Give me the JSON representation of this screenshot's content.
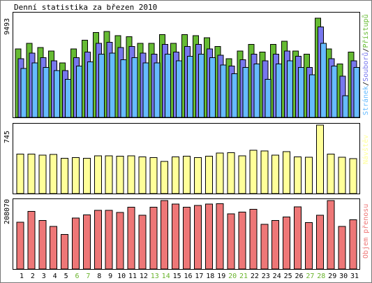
{
  "chart_data": {
    "type": "bar",
    "title": "Denní statistika za březen 2010",
    "categories": [
      "1",
      "2",
      "3",
      "4",
      "5",
      "6",
      "7",
      "8",
      "9",
      "10",
      "11",
      "12",
      "13",
      "14",
      "15",
      "16",
      "17",
      "18",
      "19",
      "20",
      "21",
      "22",
      "23",
      "24",
      "25",
      "26",
      "27",
      "28",
      "29",
      "30",
      "31"
    ],
    "weekend_days": [
      "6",
      "7",
      "13",
      "14",
      "20",
      "21",
      "27",
      "28"
    ],
    "colors": {
      "weekday_tick": "#000000",
      "weekend_tick": "#6ab42d"
    },
    "panels": [
      {
        "id": "traffic",
        "ymax_label": "9493",
        "ymax": 9493,
        "series": [
          {
            "name": "Přístupů",
            "color": "#66bb33",
            "values": [
              6300,
              6800,
              6400,
              6100,
              5000,
              6300,
              7100,
              7800,
              7900,
              7500,
              7400,
              6800,
              6800,
              7600,
              6800,
              7600,
              7500,
              7300,
              6500,
              5400,
              6100,
              6700,
              6000,
              6700,
              7000,
              6100,
              5800,
              9100,
              6300,
              4900,
              6000
            ]
          },
          {
            "name": "Souborů",
            "color": "#7777ee",
            "values": [
              5400,
              5900,
              5500,
              5200,
              4300,
              5500,
              6000,
              6800,
              6900,
              6400,
              6500,
              5900,
              5800,
              6700,
              6000,
              6500,
              6700,
              6300,
              5700,
              4700,
              5300,
              5800,
              5200,
              5800,
              6100,
              5600,
              4600,
              8300,
              5400,
              3800,
              5200
            ]
          },
          {
            "name": "Stránek",
            "color": "#66bbff",
            "values": [
              4500,
              5000,
              4600,
              4300,
              3500,
              4700,
              5100,
              5800,
              5900,
              5300,
              5500,
              5000,
              5000,
              5800,
              5200,
              5600,
              5800,
              5500,
              4800,
              4000,
              4600,
              4900,
              3500,
              4900,
              5200,
              4600,
              3900,
              6800,
              4700,
              2000,
              4600
            ]
          }
        ]
      },
      {
        "id": "visits",
        "ymax_label": "745",
        "ymax": 745,
        "series": [
          {
            "name": "Návštěv",
            "color": "#ffff99",
            "values": [
              430,
              430,
              420,
              425,
              385,
              390,
              385,
              410,
              410,
              405,
              410,
              400,
              390,
              350,
              400,
              405,
              390,
              405,
              440,
              445,
              410,
              470,
              465,
              420,
              455,
              400,
              395,
              745,
              430,
              395,
              380
            ]
          }
        ]
      },
      {
        "id": "bandwidth",
        "ymax_label": "208070",
        "ymax": 208070,
        "series": [
          {
            "name": "Objem přenosu",
            "color": "#ee7777",
            "values": [
              142000,
              175000,
              148000,
              130000,
              105000,
              155000,
              165000,
              178000,
              178000,
              172000,
              188000,
              163000,
              188000,
              208000,
              197000,
              188000,
              193000,
              197000,
              198000,
              168000,
              173000,
              182000,
              136000,
              148000,
              158000,
              189000,
              141000,
              163000,
              208070,
              130000,
              150000
            ]
          }
        ]
      }
    ],
    "side_labels": {
      "traffic": [
        {
          "text": "Stránek",
          "color": "#66bbff"
        },
        {
          "text": "/",
          "color": "#000000"
        },
        {
          "text": "Souborů",
          "color": "#7777ee"
        },
        {
          "text": "/",
          "color": "#000000"
        },
        {
          "text": "Přístupů",
          "color": "#66bb33"
        }
      ],
      "visits": [
        {
          "text": "Návštěv",
          "color": "#ffff99"
        }
      ],
      "bandwidth": [
        {
          "text": "Objem přenosu",
          "color": "#ee7777"
        }
      ]
    },
    "grid": false,
    "legend": "right side, vertical"
  }
}
